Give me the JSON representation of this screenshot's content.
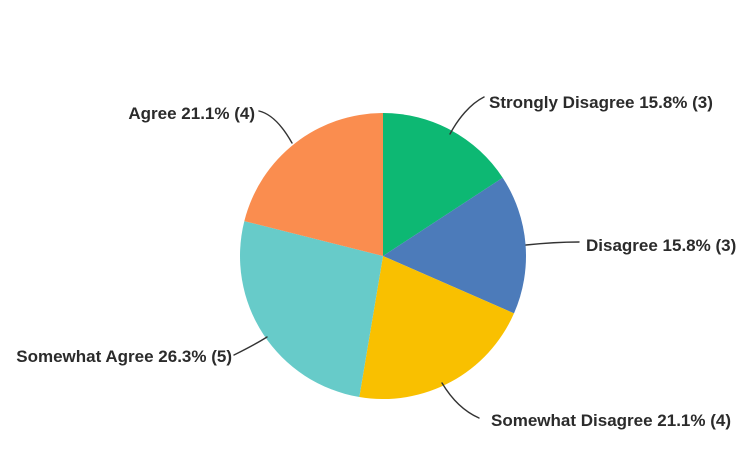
{
  "page": {
    "background_color": "#ffffff",
    "text_color": "#2b2b2b",
    "leader_line_color": "#333333"
  },
  "chart_data": {
    "type": "pie",
    "title": "",
    "direction": "clockwise",
    "start_angle_deg": 0,
    "legend_position": "none",
    "labels_style": "outside-with-leader-lines",
    "categories": [
      "Strongly Disagree",
      "Disagree",
      "Somewhat Disagree",
      "Somewhat Agree",
      "Agree"
    ],
    "values": [
      15.8,
      15.8,
      21.1,
      26.3,
      21.1
    ],
    "slices": [
      {
        "label": "Strongly Disagree",
        "percent": 15.8,
        "count": 3,
        "color": "#0db873",
        "label_full": "Strongly Disagree 15.8% (3)"
      },
      {
        "label": "Disagree",
        "percent": 15.8,
        "count": 3,
        "color": "#4c7bba",
        "label_full": "Disagree 15.8% (3)"
      },
      {
        "label": "Somewhat Disagree",
        "percent": 21.1,
        "count": 4,
        "color": "#f9c000",
        "label_full": "Somewhat Disagree 21.1% (4)"
      },
      {
        "label": "Somewhat Agree",
        "percent": 26.3,
        "count": 5,
        "color": "#67cbc9",
        "label_full": "Somewhat Agree 26.3% (5)"
      },
      {
        "label": "Agree",
        "percent": 21.1,
        "count": 4,
        "color": "#fa8d4f",
        "label_full": "Agree 21.1% (4)"
      }
    ]
  }
}
